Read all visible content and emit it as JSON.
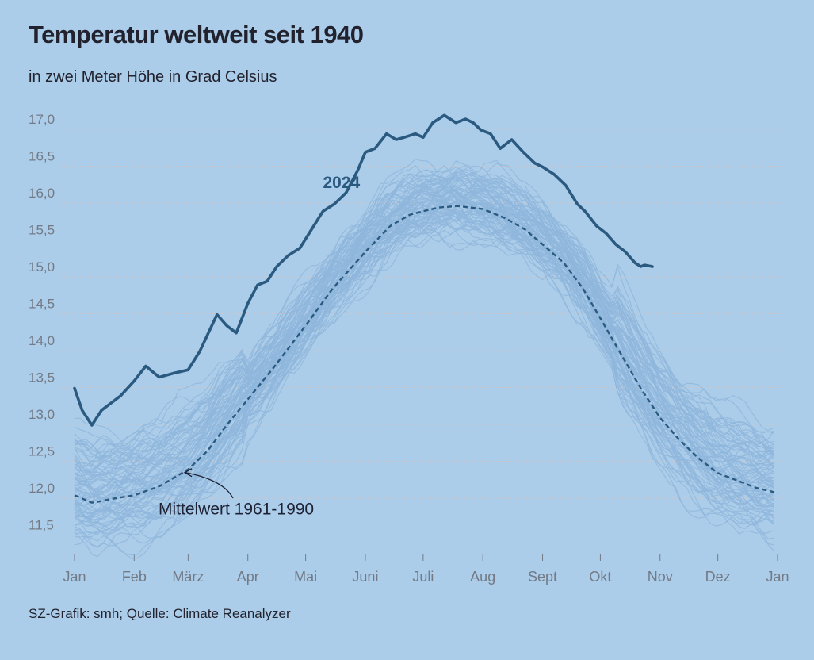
{
  "title": "Temperatur weltweit seit 1940",
  "subtitle": "in zwei Meter Höhe in Grad Celsius",
  "source": "SZ-Grafik: smh; Quelle: Climate Reanalyzer",
  "colors": {
    "background": "#abcde9",
    "background_lines": "#8fb6dc",
    "highlight": "#2b5a80",
    "mean": "#2b5a80",
    "gridline": "#c9c6cc"
  },
  "chart_data": {
    "type": "line",
    "title": "Temperatur weltweit seit 1940",
    "subtitle": "in zwei Meter Höhe in Grad Celsius",
    "xlabel": "",
    "ylabel": "",
    "x_unit": "day of year",
    "xlim": [
      1,
      366
    ],
    "ylim": [
      11.2,
      17.2
    ],
    "grid": "horizontal dashed",
    "y_ticks": [
      "17,0",
      "16,5",
      "16,0",
      "15,5",
      "15,0",
      "14,5",
      "14,0",
      "13,5",
      "13,0",
      "12,5",
      "12,0",
      "11,5"
    ],
    "y_tick_values": [
      17.0,
      16.5,
      16.0,
      15.5,
      15.0,
      14.5,
      14.0,
      13.5,
      13.0,
      12.5,
      12.0,
      11.5
    ],
    "x_ticks": [
      "Jan",
      "Feb",
      "März",
      "Apr",
      "Mai",
      "Juni",
      "Juli",
      "Aug",
      "Sept",
      "Okt",
      "Nov",
      "Dez",
      "Jan"
    ],
    "x_tick_days": [
      1,
      32,
      60,
      91,
      121,
      152,
      182,
      213,
      244,
      274,
      305,
      335,
      366
    ],
    "background_series_count": 84,
    "background_series_years": "1940-2023",
    "series": [
      {
        "name": "2024",
        "style": "highlight",
        "x": [
          1,
          5,
          10,
          15,
          20,
          25,
          32,
          38,
          45,
          52,
          60,
          66,
          75,
          80,
          85,
          91,
          96,
          101,
          106,
          112,
          118,
          124,
          130,
          136,
          142,
          148,
          152,
          157,
          163,
          168,
          172,
          178,
          182,
          187,
          193,
          199,
          204,
          208,
          212,
          217,
          222,
          228,
          234,
          240,
          244,
          250,
          256,
          262,
          266,
          272,
          277,
          282,
          287,
          292,
          295,
          297,
          301
        ],
        "y": [
          13.35,
          13.05,
          12.85,
          13.05,
          13.15,
          13.25,
          13.45,
          13.65,
          13.5,
          13.55,
          13.6,
          13.85,
          14.35,
          14.2,
          14.1,
          14.5,
          14.75,
          14.8,
          15.0,
          15.15,
          15.25,
          15.5,
          15.75,
          15.85,
          16.0,
          16.3,
          16.55,
          16.6,
          16.8,
          16.72,
          16.75,
          16.8,
          16.75,
          16.95,
          17.05,
          16.95,
          17.0,
          16.95,
          16.85,
          16.8,
          16.6,
          16.72,
          16.55,
          16.4,
          16.35,
          16.25,
          16.1,
          15.85,
          15.75,
          15.55,
          15.45,
          15.3,
          15.2,
          15.05,
          15.0,
          15.02,
          15.0
        ]
      },
      {
        "name": "Mittelwert 1961-1990",
        "style": "mean",
        "x": [
          1,
          10,
          15,
          20,
          32,
          45,
          60,
          70,
          80,
          91,
          105,
          121,
          135,
          152,
          165,
          175,
          182,
          190,
          200,
          213,
          225,
          235,
          244,
          255,
          265,
          274,
          285,
          295,
          305,
          315,
          325,
          335,
          345,
          355,
          366
        ],
        "y": [
          11.9,
          11.8,
          11.82,
          11.85,
          11.9,
          12.02,
          12.25,
          12.5,
          12.85,
          13.2,
          13.65,
          14.2,
          14.7,
          15.2,
          15.55,
          15.7,
          15.75,
          15.8,
          15.82,
          15.78,
          15.65,
          15.5,
          15.3,
          15.05,
          14.7,
          14.3,
          13.8,
          13.35,
          12.95,
          12.65,
          12.4,
          12.2,
          12.1,
          12.0,
          11.93
        ]
      }
    ],
    "annotations": [
      {
        "text": "2024",
        "x": 130,
        "y": 16.15,
        "target_series": "2024"
      },
      {
        "text": "Mittelwert 1961-1990",
        "x": 95,
        "y": 11.75,
        "target_series": "Mittelwert 1961-1990",
        "arrow_to": {
          "x": 57,
          "y": 12.25
        }
      }
    ]
  }
}
